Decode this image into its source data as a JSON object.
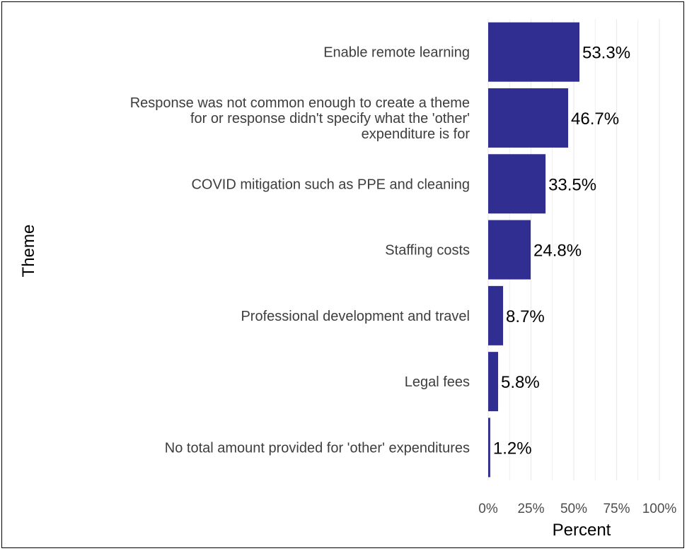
{
  "chart_data": {
    "type": "bar",
    "orientation": "horizontal",
    "categories": [
      [
        "Enable remote learning"
      ],
      [
        "Response was not common enough to create a theme",
        "for or response didn't specify what the 'other'",
        "expenditure is for"
      ],
      [
        "COVID mitigation such as PPE and cleaning"
      ],
      [
        "Staffing costs"
      ],
      [
        "Professional development and travel"
      ],
      [
        "Legal fees"
      ],
      [
        "No total amount provided for 'other' expenditures"
      ]
    ],
    "values": [
      53.3,
      46.7,
      33.5,
      24.8,
      8.7,
      5.8,
      1.2
    ],
    "value_labels": [
      "53.3%",
      "46.7%",
      "33.5%",
      "24.8%",
      "8.7%",
      "5.8%",
      "1.2%"
    ],
    "xlim": [
      0,
      100
    ],
    "xticks": [
      0,
      25,
      50,
      75,
      100
    ],
    "xtick_labels": [
      "0%",
      "25%",
      "50%",
      "75%",
      "100%"
    ],
    "xlabel": "Percent",
    "ylabel": "Theme",
    "grid": true,
    "bar_color": "#312E91",
    "grid_color": "#EBEBEB"
  }
}
